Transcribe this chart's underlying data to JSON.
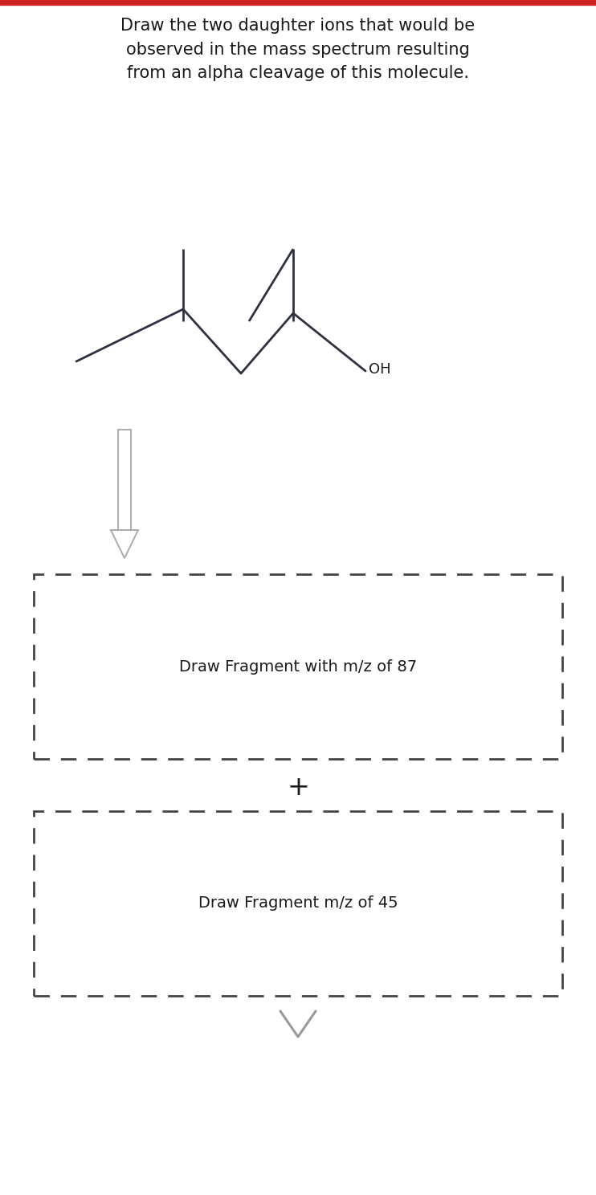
{
  "title_text": "Draw the two daughter ions that would be\nobserved in the mass spectrum resulting\nfrom an alpha cleavage of this molecule.",
  "title_fontsize": 15.0,
  "bg_color": "#ffffff",
  "molecule_color": "#2d3142",
  "text_color": "#1a1a1a",
  "fragment1_label": "Draw Fragment with m/z of 87",
  "fragment2_label": "Draw Fragment m/z of 45",
  "plus_symbol": "+",
  "OH_label": "OH",
  "arrow_color": "#aaaaaa",
  "dashed_color": "#444444",
  "top_bar_color": "#cc2222",
  "chevron_color": "#999999"
}
